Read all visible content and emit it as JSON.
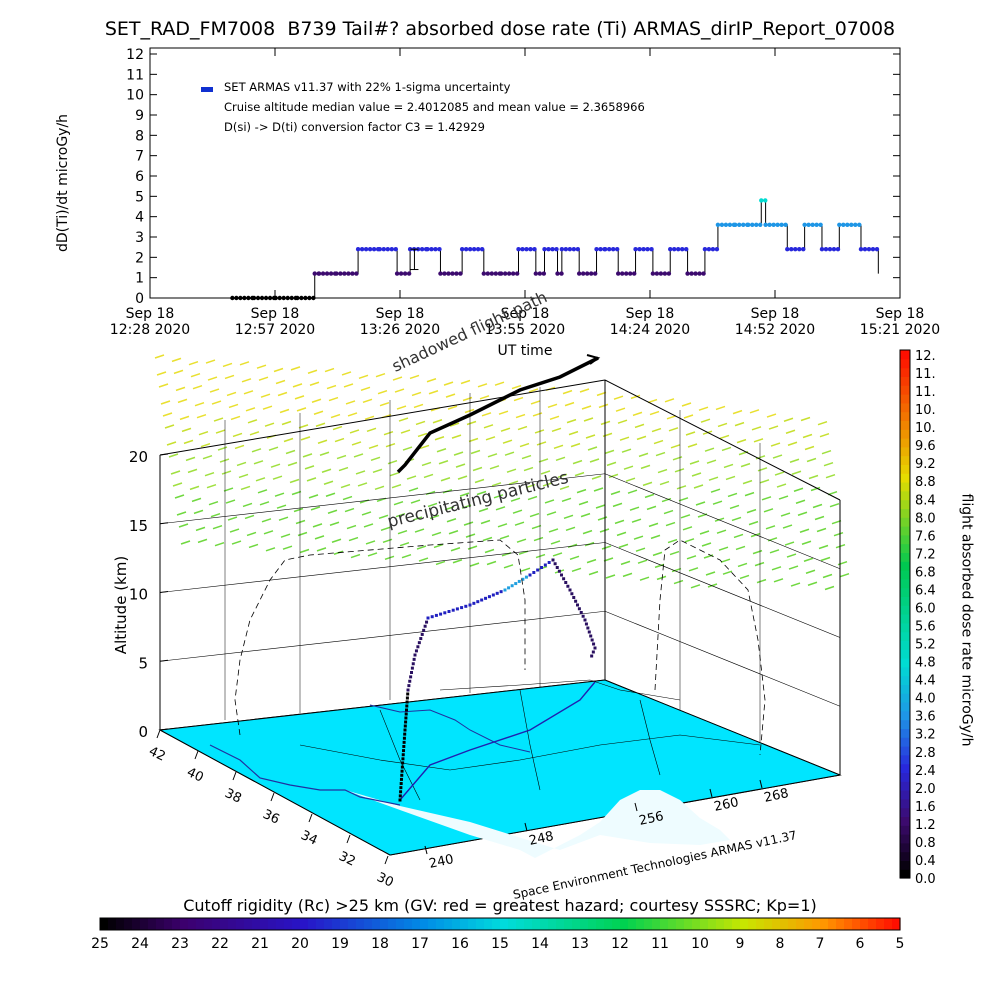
{
  "title": "SET_RAD_FM7008  B739 Tail#? absorbed dose rate (Ti) ARMAS_dirIP_Report_07008",
  "timeseries": {
    "ylabel": "dD(Ti)/dt microGy/h",
    "xlabel": "UT time",
    "legend": {
      "marker_color": "#1030d0",
      "line1": "SET ARMAS v11.37 with 22% 1-sigma uncertainty",
      "line2": "Cruise altitude median value = 2.4012085 and mean value = 2.3658966",
      "line3": "D(si) -> D(ti) conversion factor C3 = 1.42929"
    },
    "ytick_labels": [
      "0",
      "1",
      "2",
      "3",
      "4",
      "5",
      "6",
      "7",
      "8",
      "9",
      "10",
      "11",
      "12"
    ],
    "xtick_labels": [
      {
        "line1": "Sep 18",
        "line2": "12:28 2020"
      },
      {
        "line1": "Sep 18",
        "line2": "12:57 2020"
      },
      {
        "line1": "Sep 18",
        "line2": "13:26 2020"
      },
      {
        "line1": "Sep 18",
        "line2": "13:55 2020"
      },
      {
        "line1": "Sep 18",
        "line2": "14:24 2020"
      },
      {
        "line1": "Sep 18",
        "line2": "14:52 2020"
      },
      {
        "line1": "Sep 18",
        "line2": "15:21 2020"
      }
    ]
  },
  "chart_data": [
    {
      "type": "line",
      "title": "SET_RAD_FM7008  B739 Tail#? absorbed dose rate (Ti) ARMAS_dirIP_Report_07008",
      "xlabel": "UT time",
      "ylabel": "dD(Ti)/dt microGy/h",
      "x_unit": "minutes after 12:28 UT, Sep 18 2020",
      "xlim": [
        0,
        173
      ],
      "ylim": [
        0,
        12
      ],
      "series": [
        {
          "name": "SET ARMAS v11.37 with 22% 1-sigma uncertainty",
          "x": [
            19,
            24,
            29,
            34,
            38,
            39,
            43,
            48,
            53,
            57,
            60,
            64,
            67,
            72,
            77,
            81,
            85,
            89,
            91,
            94,
            95,
            99,
            103,
            105,
            108,
            112,
            116,
            120,
            124,
            128,
            131,
            135,
            138,
            141,
            142,
            147,
            151,
            155,
            159,
            164,
            168
          ],
          "y": [
            0,
            0,
            0,
            0,
            1.2,
            1.2,
            1.2,
            2.4,
            2.4,
            1.2,
            2.4,
            2.4,
            1.2,
            2.4,
            1.2,
            1.2,
            2.4,
            1.2,
            2.4,
            1.2,
            2.4,
            1.2,
            2.4,
            2.4,
            1.2,
            2.4,
            1.2,
            2.4,
            1.2,
            2.4,
            3.6,
            3.6,
            3.6,
            4.8,
            3.6,
            2.4,
            3.6,
            2.4,
            3.6,
            2.4,
            1.2
          ]
        }
      ],
      "error_bar": {
        "x": 61,
        "y": 1.9,
        "err": 0.5
      }
    },
    {
      "type": "line",
      "title": "",
      "zlabel": "Altitude (km)",
      "zlim": [
        0,
        20
      ],
      "ztick_labels": [
        "0",
        "5",
        "10",
        "15",
        "20"
      ],
      "lat_tick_labels": [
        "42",
        "40",
        "38",
        "36",
        "34",
        "32",
        "30"
      ],
      "lon_tick_labels": [
        "240",
        "248",
        "256",
        "260",
        "268"
      ],
      "annotations": [
        "shadowed flight path",
        "precipitating particles"
      ],
      "credit": "Space Environment Technologies ARMAS v11.37",
      "colorbar": {
        "label": "flight absorbed dose rate microGy/h",
        "ticks": [
          "0.0",
          "0.4",
          "0.8",
          "1.2",
          "1.6",
          "2.0",
          "2.4",
          "2.8",
          "3.2",
          "3.6",
          "4.0",
          "4.4",
          "4.8",
          "5.2",
          "5.6",
          "6.0",
          "6.4",
          "6.8",
          "7.2",
          "7.6",
          "8.0",
          "8.4",
          "8.8",
          "9.2",
          "9.6",
          "10.",
          "10.",
          "11.",
          "11.",
          "12."
        ]
      },
      "cutoff_rigidity": {
        "label": "Cutoff rigidity (Rc) >25 km (GV: red = greatest hazard; courtesy SSSRC; Kp=1)",
        "ticks": [
          "25",
          "24",
          "23",
          "22",
          "21",
          "20",
          "19",
          "18",
          "17",
          "16",
          "15",
          "14",
          "13",
          "12",
          "11",
          "10",
          "9",
          "8",
          "7",
          "6",
          "5"
        ]
      }
    }
  ],
  "colors": {
    "map_fill": "#00e5ff",
    "map_land_light": "#e8fbff",
    "track_blue": "#2020b0",
    "track_purple": "#3a0d70",
    "track_cyan": "#20a0e0"
  }
}
